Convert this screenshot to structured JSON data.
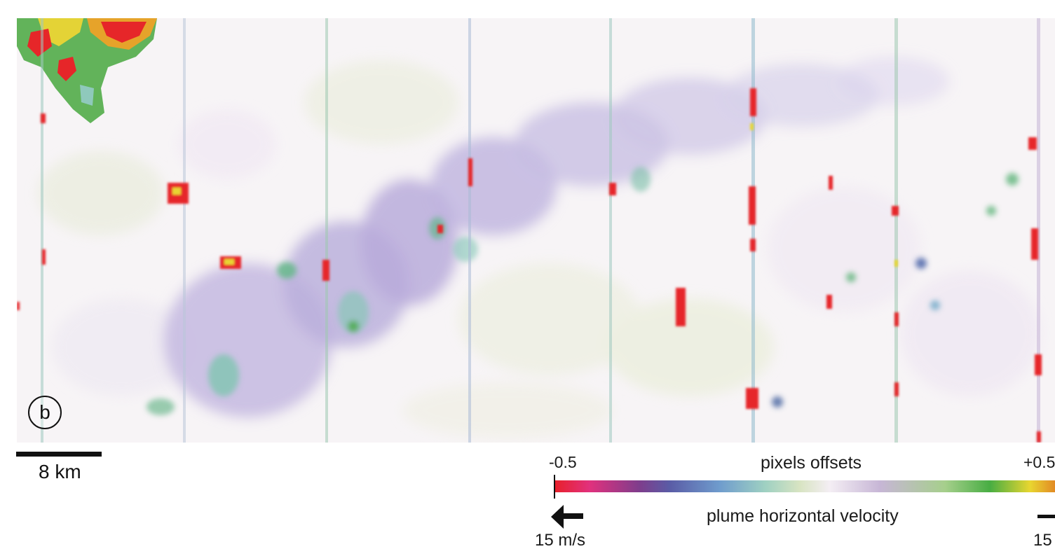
{
  "panel_label": "b",
  "scale_bar": {
    "label": "8 km"
  },
  "colorbar": {
    "min_label": "-0.5",
    "max_label": "+0.5",
    "title": "pixels offsets",
    "velocity_label": "plume horizontal velocity",
    "speed_left": "15 m/s",
    "speed_right": "15",
    "colors": [
      "#e8202a",
      "#e1317d",
      "#7e3d8c",
      "#5a5ca6",
      "#6f9ccd",
      "#9ed0c2",
      "#d8e4c2",
      "#f4eef4",
      "#c7b6d6",
      "#a6cf8c",
      "#48ad43",
      "#e8d630",
      "#e28a24"
    ]
  },
  "map": {
    "background": "#f7f4f6",
    "plume_color": "#b3a6d6",
    "positive_color": "#48ad43",
    "negative_color": "#e8202a"
  }
}
